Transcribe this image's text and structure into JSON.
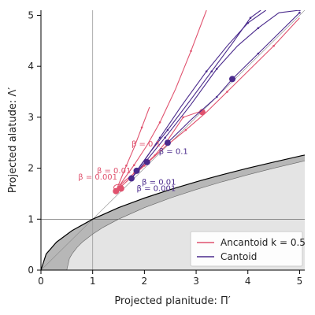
{
  "chart_data": {
    "type": "line",
    "xlabel": "Projected planitude: Π′",
    "ylabel": "Projected alatude: Λ′",
    "xlim": [
      0,
      5.1
    ],
    "ylim": [
      0,
      5.1
    ],
    "xticks": [
      "0",
      "1",
      "2",
      "3",
      "4",
      "5"
    ],
    "yticks": [
      "0",
      "1",
      "2",
      "3",
      "4",
      "5"
    ],
    "reference_lines": {
      "x": 1,
      "y": 1,
      "diagonal": "y = x"
    },
    "colors": {
      "ancantoid": "#e0526e",
      "cantoid": "#4a2a8c",
      "dark_region": "#b7b7b7",
      "light_region": "#e4e4e4",
      "boundary": "#000000"
    },
    "regions": {
      "outer_boundary": {
        "x": [
          0,
          0.1,
          0.3,
          0.6,
          1,
          1.5,
          2,
          2.5,
          3,
          3.5,
          4,
          4.5,
          5,
          5.1
        ],
        "y": [
          0,
          0.316,
          0.548,
          0.775,
          1,
          1.225,
          1.414,
          1.581,
          1.732,
          1.871,
          2,
          2.121,
          2.236,
          2.258
        ]
      },
      "inner_boundary": {
        "x": [
          0.5,
          0.55,
          0.6,
          0.7,
          0.8,
          1,
          1.2,
          1.5,
          2,
          2.5,
          3,
          3.5,
          4,
          4.5,
          5,
          5.1
        ],
        "y": [
          0,
          0.224,
          0.316,
          0.447,
          0.548,
          0.707,
          0.837,
          1,
          1.225,
          1.414,
          1.581,
          1.732,
          1.871,
          2,
          2.121,
          2.145
        ]
      }
    },
    "series": [
      {
        "name": "Ancantoid k = 0.5",
        "color": "#e0526e",
        "lines": [
          {
            "x": [
              1.45,
              1.7,
              2.0,
              2.4,
              2.8,
              3.2,
              3.6,
              4.0,
              4.5,
              5.0
            ],
            "y": [
              1.55,
              1.78,
              2.05,
              2.42,
              2.75,
              3.1,
              3.5,
              3.9,
              4.4,
              4.95
            ]
          },
          {
            "x": [
              1.45,
              1.6,
              1.8,
              2.05,
              2.3,
              2.6,
              2.9,
              3.2
            ],
            "y": [
              1.55,
              1.78,
              2.06,
              2.45,
              2.9,
              3.55,
              4.3,
              5.1
            ]
          },
          {
            "x": [
              1.45,
              1.55,
              1.65,
              1.8,
              1.95,
              2.1
            ],
            "y": [
              1.55,
              1.8,
              2.05,
              2.4,
              2.8,
              3.2
            ]
          },
          {
            "x": [
              1.48,
              1.62,
              1.8,
              1.98,
              2.2,
              2.45,
              2.75,
              3.1
            ],
            "y": [
              1.62,
              1.75,
              1.9,
              2.05,
              2.25,
              2.55,
              3.0,
              3.12
            ]
          }
        ],
        "markers": [
          {
            "x": 1.45,
            "y": 1.55,
            "label": "β = 0.001"
          },
          {
            "x": 1.55,
            "y": 1.6,
            "label": "β = 0.01"
          },
          {
            "x": 3.12,
            "y": 3.1,
            "label": ""
          }
        ]
      },
      {
        "name": "Cantoid",
        "color": "#4a2a8c",
        "lines": [
          {
            "x": [
              1.75,
              2.0,
              2.4,
              2.9,
              3.4,
              3.8,
              4.2,
              4.6,
              5.0
            ],
            "y": [
              1.8,
              2.1,
              2.6,
              3.25,
              3.95,
              4.4,
              4.75,
              5.05,
              5.1
            ]
          },
          {
            "x": [
              1.75,
              2.0,
              2.3,
              2.7,
              3.2,
              3.6,
              4.0,
              4.35
            ],
            "y": [
              1.8,
              2.15,
              2.6,
              3.2,
              3.9,
              4.4,
              4.85,
              5.1
            ]
          },
          {
            "x": [
              1.85,
              2.1,
              2.45,
              2.9,
              3.3,
              3.7,
              4.05,
              4.25
            ],
            "y": [
              1.95,
              2.3,
              2.75,
              3.35,
              3.9,
              4.45,
              4.95,
              5.1
            ]
          },
          {
            "x": [
              2.45,
              2.9,
              3.4,
              3.7,
              4.2,
              4.7,
              5.0
            ],
            "y": [
              2.5,
              2.95,
              3.4,
              3.75,
              4.25,
              4.75,
              5.05
            ]
          }
        ],
        "markers": [
          {
            "x": 1.75,
            "y": 1.8,
            "label": "β = 0.001"
          },
          {
            "x": 1.85,
            "y": 1.95,
            "label": "β = 0.01"
          },
          {
            "x": 2.05,
            "y": 2.12,
            "label": ""
          },
          {
            "x": 2.45,
            "y": 2.5,
            "label": "β = 0.1"
          },
          {
            "x": 3.7,
            "y": 3.75,
            "label": ""
          }
        ]
      }
    ],
    "annotations": [
      {
        "text": "β = 0.1",
        "x": 1.75,
        "y": 2.43,
        "series": "ancantoid"
      },
      {
        "text": "β = 0.01",
        "x": 1.08,
        "y": 1.9,
        "series": "ancantoid"
      },
      {
        "text": "β = 0.001",
        "x": 0.72,
        "y": 1.78,
        "series": "ancantoid"
      },
      {
        "text": "β = 0.1",
        "x": 2.28,
        "y": 2.28,
        "series": "cantoid"
      },
      {
        "text": "β = 0.01",
        "x": 1.95,
        "y": 1.68,
        "series": "cantoid"
      },
      {
        "text": "β = 0.001",
        "x": 1.85,
        "y": 1.55,
        "series": "cantoid"
      }
    ],
    "legend": {
      "position": "lower-right",
      "entries": [
        {
          "label": "Ancantoid k = 0.5",
          "color": "#e0526e"
        },
        {
          "label": "Cantoid",
          "color": "#4a2a8c"
        }
      ]
    }
  }
}
